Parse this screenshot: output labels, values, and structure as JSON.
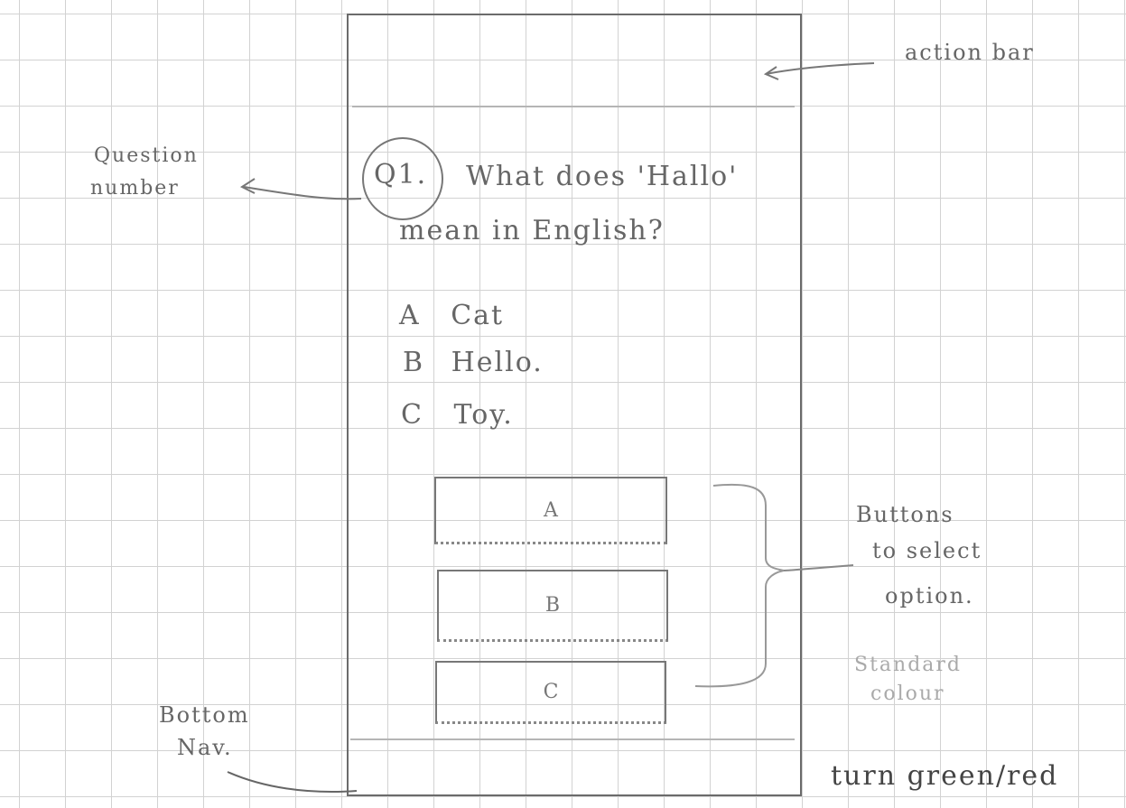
{
  "question": {
    "number": "Q1.",
    "line1": "What does 'Hallo'",
    "line2": "mean in English?"
  },
  "options": [
    {
      "letter": "A",
      "text": "Cat"
    },
    {
      "letter": "B",
      "text": "Hello."
    },
    {
      "letter": "C",
      "text": "Toy."
    }
  ],
  "buttons": [
    "A",
    "B",
    "C"
  ],
  "annotations": {
    "action_bar": "action bar",
    "question_number_line1": "Question",
    "question_number_line2": "number",
    "buttons_line1": "Buttons",
    "buttons_line2": "to select",
    "buttons_line3": "option.",
    "standard_line1": "Standard",
    "standard_line2": "colour",
    "feedback": "turn green/red",
    "bottom_line1": "Bottom",
    "bottom_line2": "Nav."
  }
}
